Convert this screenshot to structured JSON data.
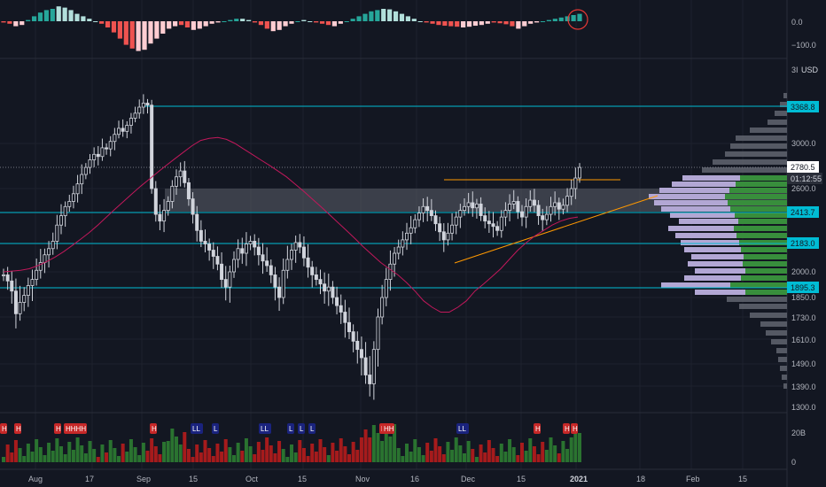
{
  "colors": {
    "background": "#131722",
    "grid": "#1e222d",
    "candle": "#d1d4dc",
    "up": "#26a69a",
    "down": "#ef5350",
    "level": "#00bcd4",
    "ma": "#c2185b",
    "trend": "#ff9800",
    "zone": "#5d606b",
    "vp_gray": "#5d606b",
    "vp_lavender": "#b2a7d4",
    "vp_green": "#388e3c",
    "vol_up": "#2e7d32",
    "vol_down": "#b71c1c",
    "marker_h": "#c62828",
    "marker_l": "#1a237e",
    "highlight_circle": "#e53935"
  },
  "osc_axis": {
    "ticks": [
      "0.0",
      "−100.0"
    ]
  },
  "price_axis": {
    "top_labels": [
      "3I",
      "USD"
    ],
    "ticks": [
      "3000.0",
      "2600.0",
      "2000.0",
      "1850.0",
      "1730.0",
      "1610.0",
      "1490.0",
      "1390.0",
      "1300.0"
    ]
  },
  "levels": [
    {
      "value": "3368.8"
    },
    {
      "value": "2413.7"
    },
    {
      "value": "2183.0"
    },
    {
      "value": "1895.3"
    }
  ],
  "last_price": {
    "value": "2780.5",
    "countdown": "01:12:55"
  },
  "volume_axis": {
    "ticks": [
      "20B",
      "0"
    ]
  },
  "time_axis": {
    "labels": [
      "Aug",
      "17",
      "Sep",
      "15",
      "Oct",
      "15",
      "Nov",
      "16",
      "Dec",
      "15",
      "2021",
      "18",
      "Feb",
      "15"
    ]
  },
  "markers": {
    "h_letter": "H",
    "l_letter": "L",
    "labels": [
      "H",
      "H",
      "H",
      "HHHH",
      "H",
      "H",
      "LL",
      "L",
      "LL",
      "L",
      "L",
      "L",
      "HH",
      "LL",
      "H",
      "H",
      "H"
    ]
  },
  "chart_data": {
    "type": "candlestick",
    "price_range": [
      1300,
      3650
    ],
    "closes": [
      1980,
      1940,
      1880,
      1750,
      1820,
      1860,
      1910,
      1950,
      2010,
      2060,
      2110,
      2150,
      2200,
      2320,
      2390,
      2460,
      2500,
      2560,
      2640,
      2720,
      2780,
      2850,
      2900,
      2880,
      2960,
      2950,
      3020,
      3090,
      3150,
      3120,
      3180,
      3250,
      3300,
      3360,
      3400,
      3380,
      2600,
      2400,
      2350,
      2430,
      2500,
      2620,
      2700,
      2750,
      2650,
      2520,
      2400,
      2280,
      2200,
      2180,
      2140,
      2100,
      2050,
      1950,
      1900,
      2000,
      2080,
      2150,
      2120,
      2180,
      2200,
      2160,
      2110,
      2070,
      2040,
      1980,
      1900,
      1850,
      2010,
      2080,
      2140,
      2190,
      2160,
      2090,
      2030,
      1980,
      1950,
      1920,
      1880,
      1900,
      1850,
      1800,
      1760,
      1700,
      1650,
      1600,
      1560,
      1520,
      1440,
      1400,
      1560,
      1730,
      1850,
      1950,
      2050,
      2120,
      2160,
      2210,
      2260,
      2300,
      2360,
      2410,
      2460,
      2430,
      2390,
      2330,
      2270,
      2210,
      2260,
      2320,
      2380,
      2430,
      2460,
      2490,
      2450,
      2480,
      2390,
      2350,
      2330,
      2310,
      2280,
      2380,
      2430,
      2480,
      2500,
      2420,
      2380,
      2460,
      2510,
      2470,
      2390,
      2360,
      2400,
      2460,
      2490,
      2440,
      2470,
      2540,
      2600,
      2690,
      2780
    ],
    "ma": [
      2000,
      2005,
      2010,
      2020,
      2040,
      2065,
      2095,
      2130,
      2170,
      2215,
      2265,
      2320,
      2380,
      2440,
      2500,
      2560,
      2620,
      2680,
      2740,
      2800,
      2860,
      2920,
      2980,
      3030,
      3050,
      3060,
      3040,
      3000,
      2950,
      2900,
      2850,
      2800,
      2750,
      2700,
      2640,
      2580,
      2520,
      2460,
      2400,
      2340,
      2280,
      2220,
      2160,
      2110,
      2060,
      2020,
      1980,
      1930,
      1880,
      1830,
      1790,
      1760,
      1760,
      1790,
      1830,
      1880,
      1920,
      1970,
      2020,
      2080,
      2140,
      2190,
      2240,
      2280,
      2320,
      2350,
      2370,
      2380
    ],
    "oscillator": [
      -5,
      -10,
      -20,
      -15,
      5,
      20,
      35,
      45,
      50,
      60,
      55,
      45,
      30,
      20,
      10,
      0,
      -10,
      -25,
      -45,
      -70,
      -95,
      -110,
      -120,
      -115,
      -90,
      -70,
      -50,
      -30,
      -20,
      -15,
      -25,
      -35,
      -30,
      -20,
      -10,
      -5,
      0,
      5,
      10,
      10,
      5,
      -5,
      -15,
      -30,
      -40,
      -35,
      -20,
      -10,
      0,
      5,
      0,
      -5,
      -10,
      -15,
      -20,
      -10,
      0,
      10,
      20,
      30,
      40,
      45,
      50,
      48,
      40,
      30,
      20,
      10,
      0,
      -5,
      -10,
      -15,
      -18,
      -20,
      -22,
      -25,
      -22,
      -18,
      -15,
      -10,
      -5,
      -8,
      -12,
      -20,
      -30,
      -20,
      -10,
      -5,
      0,
      5,
      10,
      15,
      20,
      25,
      30
    ]
  }
}
